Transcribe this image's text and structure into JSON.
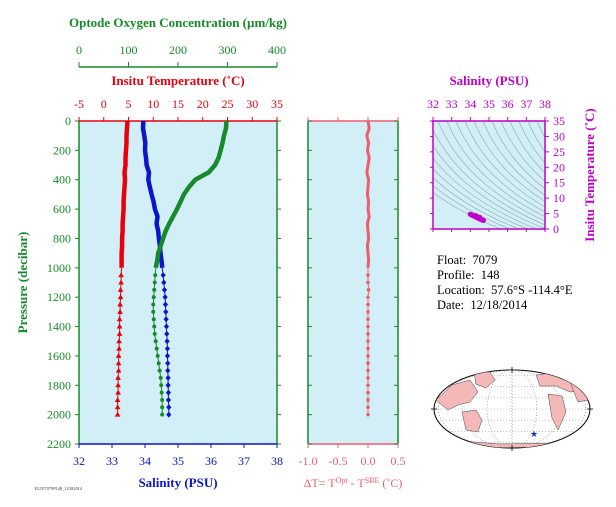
{
  "colors": {
    "temperature": "#e8000b",
    "salinity": "#0a16c8",
    "oxygen": "#178a29",
    "delta_t": "#f05c6a",
    "ts_panel": "#c000c8",
    "plot_bg": "#d2eff8",
    "land": "#f5b8b8"
  },
  "info": {
    "float_label": "Float:",
    "float_value": "7079",
    "profile_label": "Profile:",
    "profile_value": "148",
    "location_label": "Location:",
    "location_value": "57.6°S  -114.4°E",
    "date_label": "Date:",
    "date_value": "12/18/2014"
  },
  "footer_stamp": "FLT07079P148_12182014",
  "chart_data": [
    {
      "type": "line",
      "title": "",
      "ylabel": "Pressure (decibar)",
      "ylim": [
        2200,
        0
      ],
      "y_ticks": [
        0,
        200,
        400,
        600,
        800,
        1000,
        1200,
        1400,
        1600,
        1800,
        2000,
        2200
      ],
      "axes": {
        "oxygen": {
          "label": "Optode Oxygen Concentration (µm/kg)",
          "lim": [
            0,
            400
          ],
          "ticks": [
            0,
            100,
            200,
            300,
            400
          ]
        },
        "temperature": {
          "label": "Insitu Temperature (˚C)",
          "lim": [
            -5,
            35
          ],
          "ticks": [
            -5,
            0,
            5,
            10,
            15,
            20,
            25,
            30,
            35
          ]
        },
        "salinity": {
          "label": "Salinity (PSU)",
          "lim": [
            32,
            38
          ],
          "ticks": [
            32,
            33,
            34,
            35,
            36,
            37,
            38
          ]
        }
      },
      "series": [
        {
          "name": "",
          "variable": "temperature",
          "continuous": {
            "p": [
              0,
              50,
              100,
              150,
              200,
              250,
              300,
              350,
              400,
              450,
              500,
              550,
              600,
              650,
              700,
              750,
              800,
              850,
              900,
              950,
              1000
            ],
            "x": [
              4.8,
              4.7,
              4.6,
              4.6,
              4.5,
              4.4,
              4.4,
              4.2,
              4.3,
              4.2,
              4.1,
              4.0,
              4.0,
              3.9,
              3.8,
              3.8,
              3.7,
              3.7,
              3.6,
              3.6,
              3.6
            ]
          },
          "discrete": {
            "p": [
              1050,
              1100,
              1150,
              1200,
              1250,
              1300,
              1350,
              1400,
              1450,
              1500,
              1550,
              1600,
              1650,
              1700,
              1750,
              1800,
              1850,
              1900,
              1950,
              2000
            ],
            "x": [
              3.5,
              3.5,
              3.4,
              3.4,
              3.3,
              3.3,
              3.2,
              3.2,
              3.2,
              3.1,
              3.1,
              3.0,
              3.0,
              3.0,
              2.9,
              2.9,
              2.9,
              2.8,
              2.8,
              2.8
            ]
          }
        },
        {
          "name": "",
          "variable": "salinity",
          "continuous": {
            "p": [
              0,
              50,
              100,
              150,
              200,
              250,
              300,
              350,
              400,
              450,
              500,
              550,
              600,
              650,
              700,
              750,
              800,
              850,
              900,
              950,
              1000
            ],
            "x": [
              33.95,
              33.94,
              33.98,
              34.01,
              34.0,
              34.03,
              34.05,
              34.12,
              34.1,
              34.15,
              34.2,
              34.26,
              34.3,
              34.38,
              34.35,
              34.4,
              34.42,
              34.45,
              34.47,
              34.5,
              34.52
            ]
          },
          "discrete": {
            "p": [
              1050,
              1100,
              1150,
              1200,
              1250,
              1300,
              1350,
              1400,
              1450,
              1500,
              1550,
              1600,
              1650,
              1700,
              1750,
              1800,
              1850,
              1900,
              1950,
              2000
            ],
            "x": [
              34.55,
              34.57,
              34.59,
              34.61,
              34.62,
              34.63,
              34.64,
              34.65,
              34.66,
              34.67,
              34.68,
              34.68,
              34.69,
              34.69,
              34.7,
              34.7,
              34.71,
              34.71,
              34.72,
              34.72
            ]
          }
        },
        {
          "name": "",
          "variable": "oxygen",
          "continuous": {
            "p": [
              0,
              50,
              100,
              150,
              200,
              250,
              300,
              350,
              400,
              450,
              500,
              550,
              600,
              650,
              700,
              750,
              800,
              850,
              900,
              950,
              1000
            ],
            "x": [
              298,
              297,
              293,
              290,
              286,
              282,
              275,
              262,
              235,
              222,
              212,
              205,
              198,
              190,
              182,
              175,
              170,
              165,
              160,
              158,
              155
            ]
          },
          "discrete": {
            "p": [
              1050,
              1100,
              1150,
              1200,
              1250,
              1300,
              1350,
              1400,
              1450,
              1500,
              1550,
              1600,
              1650,
              1700,
              1750,
              1800,
              1850,
              1900,
              1950,
              2000
            ],
            "x": [
              154,
              153,
              152,
              151,
              150,
              150,
              151,
              152,
              153,
              155,
              157,
              159,
              161,
              163,
              165,
              166,
              167,
              168,
              168,
              168
            ]
          }
        }
      ]
    },
    {
      "type": "line",
      "title": "",
      "xlabel": "ΔT= T^Opt - T^SBE (˚C)",
      "xlim": [
        -1.0,
        0.5
      ],
      "x_ticks": [
        -1.0,
        -0.5,
        0.0,
        0.5
      ],
      "ylim": [
        2200,
        0
      ],
      "series": [
        {
          "name": "",
          "continuous": {
            "p": [
              0,
              50,
              100,
              150,
              200,
              250,
              300,
              350,
              400,
              450,
              500,
              550,
              600,
              650,
              700,
              750,
              800,
              850,
              900,
              950,
              1000
            ],
            "x": [
              0.0,
              0.02,
              -0.02,
              0.01,
              -0.01,
              0.02,
              0.0,
              -0.02,
              0.01,
              0.0,
              -0.01,
              0.01,
              0.0,
              0.02,
              -0.01,
              0.0,
              0.01,
              -0.01,
              0.0,
              0.01,
              0.0
            ]
          },
          "discrete": {
            "p": [
              1050,
              1100,
              1150,
              1200,
              1250,
              1300,
              1350,
              1400,
              1450,
              1500,
              1550,
              1600,
              1650,
              1700,
              1750,
              1800,
              1850,
              1900,
              1950,
              2000
            ],
            "x": [
              0.0,
              0.0,
              0.01,
              0.0,
              0.0,
              0.0,
              0.0,
              0.0,
              0.0,
              0.0,
              0.0,
              0.0,
              0.0,
              0.0,
              0.0,
              0.0,
              0.0,
              0.0,
              0.0,
              0.0
            ]
          }
        }
      ]
    },
    {
      "type": "scatter",
      "title": "",
      "xlabel": "Salinity (PSU)",
      "ylabel": "Insitu Temperature (˚C)",
      "xlim": [
        32,
        38
      ],
      "ylim": [
        0,
        35
      ],
      "x_ticks": [
        32,
        33,
        34,
        35,
        36,
        37,
        38
      ],
      "y_ticks": [
        0,
        5,
        10,
        15,
        20,
        25,
        30,
        35
      ],
      "points": {
        "x": [
          34.0,
          34.05,
          34.1,
          34.15,
          34.2,
          34.25,
          34.3,
          34.35,
          34.4,
          34.45,
          34.5,
          34.55,
          34.6,
          34.65,
          34.7,
          34.5,
          34.3
        ],
        "y": [
          4.8,
          4.6,
          4.5,
          4.4,
          4.2,
          4.0,
          3.9,
          3.7,
          3.6,
          3.5,
          3.3,
          3.2,
          3.0,
          2.9,
          2.8,
          3.8,
          4.3
        ]
      }
    }
  ]
}
